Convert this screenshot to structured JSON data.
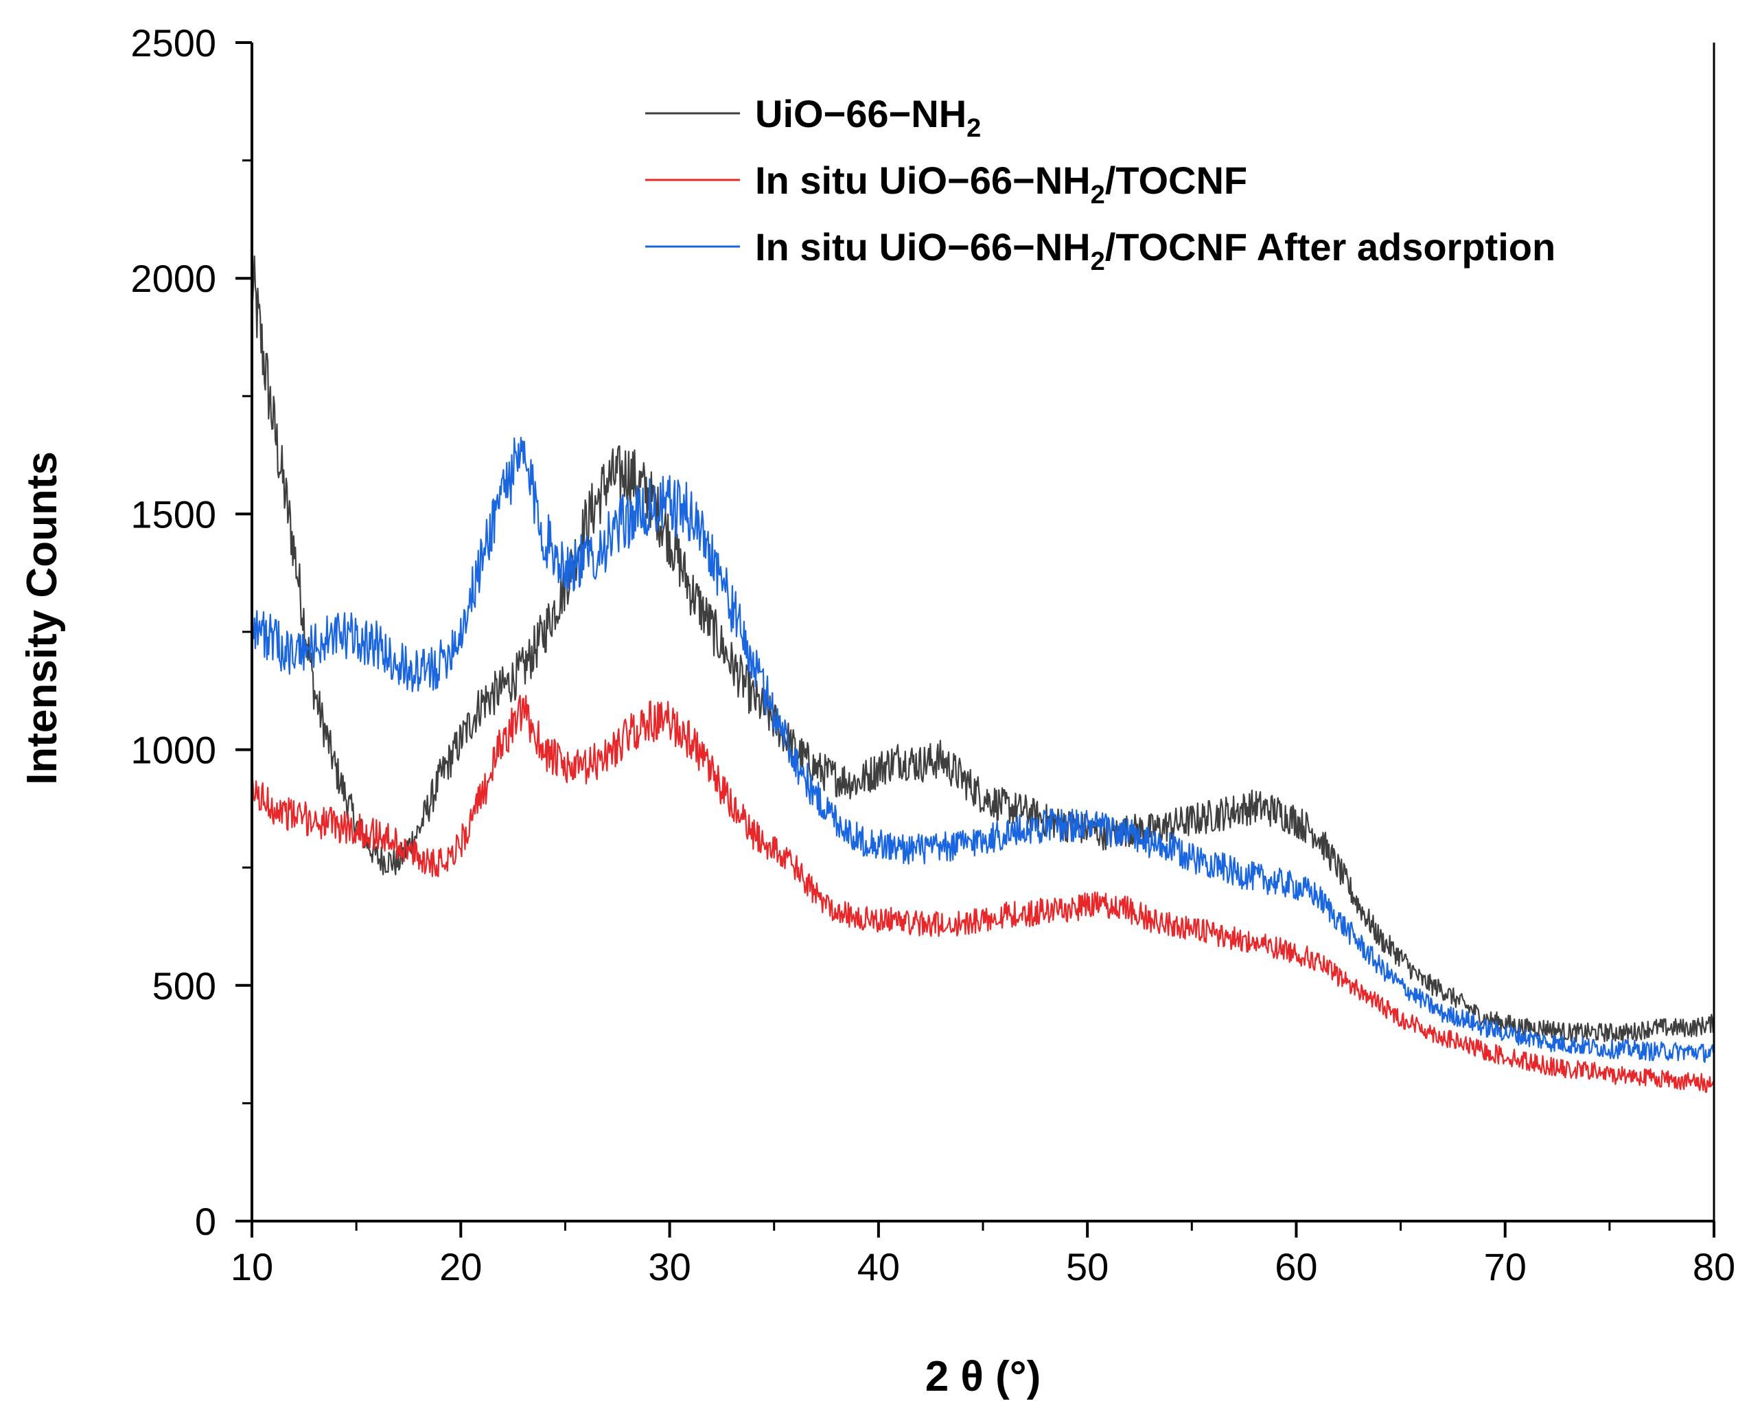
{
  "chart_data": {
    "type": "line",
    "title": "",
    "xlabel": "2 θ (°)",
    "ylabel": "Intensity Counts",
    "xlim": [
      10,
      80
    ],
    "ylim": [
      0,
      2500
    ],
    "x_ticks": [
      "10",
      "20",
      "30",
      "40",
      "50",
      "60",
      "70",
      "80"
    ],
    "y_ticks": [
      "0",
      "500",
      "1000",
      "1500",
      "2000",
      "2500"
    ],
    "legend_position": "top-center",
    "grid": false,
    "series": [
      {
        "name": "UiO−66−NH2",
        "label_main": "UiO−66−NH",
        "label_sub": "2",
        "label_tail": "",
        "color": "#3f3f3f",
        "x": [
          10,
          11,
          12,
          13,
          14,
          15,
          16,
          17,
          18,
          19,
          20,
          21,
          22,
          23,
          24,
          25,
          26,
          27,
          28,
          29,
          30,
          31,
          32,
          33,
          34,
          35,
          36,
          37,
          38,
          39,
          40,
          41,
          42,
          43,
          44,
          45,
          46,
          47,
          48,
          49,
          50,
          51,
          52,
          53,
          54,
          55,
          56,
          57,
          58,
          59,
          60,
          61,
          62,
          63,
          64,
          65,
          66,
          67,
          68,
          69,
          70,
          71,
          72,
          73,
          74,
          75,
          76,
          77,
          78,
          79,
          80
        ],
        "y": [
          2000,
          1700,
          1430,
          1120,
          960,
          840,
          770,
          760,
          830,
          940,
          1020,
          1100,
          1130,
          1170,
          1250,
          1350,
          1480,
          1570,
          1590,
          1540,
          1450,
          1340,
          1260,
          1180,
          1110,
          1060,
          1000,
          960,
          940,
          930,
          960,
          980,
          970,
          980,
          940,
          900,
          880,
          870,
          850,
          840,
          830,
          820,
          830,
          830,
          840,
          850,
          860,
          870,
          880,
          870,
          850,
          820,
          750,
          670,
          600,
          560,
          510,
          490,
          460,
          430,
          420,
          410,
          410,
          400,
          400,
          400,
          400,
          410,
          410,
          410,
          420
        ]
      },
      {
        "name": "In situ UiO−66−NH2/TOCNF",
        "label_main": "In situ UiO−66−NH",
        "label_sub": "2",
        "label_tail": "/TOCNF",
        "color": "#e8272a",
        "x": [
          10,
          11,
          12,
          13,
          14,
          15,
          16,
          17,
          18,
          19,
          20,
          21,
          22,
          23,
          24,
          25,
          26,
          27,
          28,
          29,
          30,
          31,
          32,
          33,
          34,
          35,
          36,
          37,
          38,
          39,
          40,
          41,
          42,
          43,
          44,
          45,
          46,
          47,
          48,
          49,
          50,
          51,
          52,
          53,
          54,
          55,
          56,
          57,
          58,
          59,
          60,
          61,
          62,
          63,
          64,
          65,
          66,
          67,
          68,
          69,
          70,
          71,
          72,
          73,
          74,
          75,
          76,
          77,
          78,
          79,
          80
        ],
        "y": [
          910,
          880,
          860,
          850,
          840,
          830,
          820,
          800,
          770,
          760,
          800,
          900,
          1020,
          1080,
          1000,
          960,
          960,
          990,
          1030,
          1060,
          1060,
          1020,
          950,
          880,
          820,
          790,
          750,
          690,
          660,
          640,
          640,
          640,
          630,
          630,
          630,
          640,
          650,
          650,
          660,
          660,
          670,
          670,
          660,
          640,
          630,
          620,
          610,
          600,
          590,
          580,
          570,
          550,
          520,
          490,
          460,
          430,
          410,
          390,
          375,
          360,
          350,
          340,
          330,
          320,
          320,
          310,
          310,
          305,
          300,
          295,
          290
        ]
      },
      {
        "name": "In situ UiO−66−NH2/TOCNF After adsorption",
        "label_main": "In situ UiO−66−NH",
        "label_sub": "2",
        "label_tail": "/TOCNF After adsorption",
        "color": "#1a66e0",
        "x": [
          10,
          11,
          12,
          13,
          14,
          15,
          16,
          17,
          18,
          19,
          20,
          21,
          22,
          23,
          24,
          25,
          26,
          27,
          28,
          29,
          30,
          31,
          32,
          33,
          34,
          35,
          36,
          37,
          38,
          39,
          40,
          41,
          42,
          43,
          44,
          45,
          46,
          47,
          48,
          49,
          50,
          51,
          52,
          53,
          54,
          55,
          56,
          57,
          58,
          59,
          60,
          61,
          62,
          63,
          64,
          65,
          66,
          67,
          68,
          69,
          70,
          71,
          72,
          73,
          74,
          75,
          76,
          77,
          78,
          79,
          80
        ],
        "y": [
          1270,
          1230,
          1200,
          1220,
          1240,
          1240,
          1220,
          1180,
          1160,
          1180,
          1250,
          1400,
          1560,
          1620,
          1450,
          1390,
          1400,
          1440,
          1490,
          1510,
          1520,
          1500,
          1420,
          1300,
          1180,
          1080,
          980,
          900,
          850,
          810,
          800,
          790,
          790,
          790,
          800,
          810,
          820,
          830,
          840,
          840,
          840,
          830,
          820,
          800,
          790,
          770,
          760,
          740,
          730,
          720,
          710,
          690,
          640,
          590,
          540,
          500,
          470,
          440,
          430,
          410,
          400,
          390,
          380,
          375,
          370,
          365,
          365,
          360,
          360,
          360,
          355
        ]
      }
    ]
  }
}
